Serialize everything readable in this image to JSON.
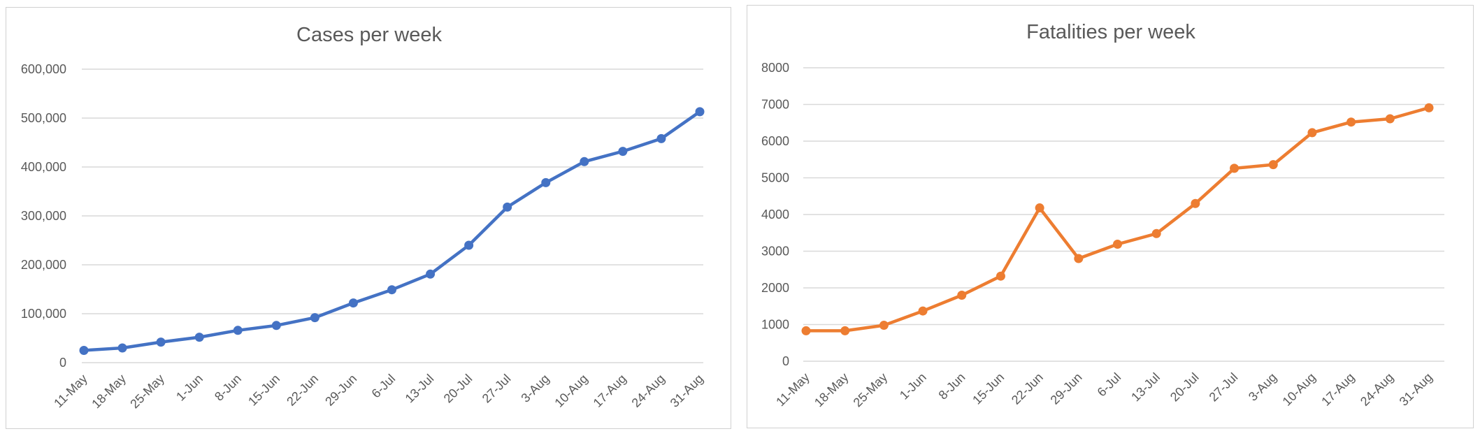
{
  "chart_data": [
    {
      "type": "line",
      "title": "Cases per week",
      "categories": [
        "11-May",
        "18-May",
        "25-May",
        "1-Jun",
        "8-Jun",
        "15-Jun",
        "22-Jun",
        "29-Jun",
        "6-Jul",
        "13-Jul",
        "20-Jul",
        "27-Jul",
        "3-Aug",
        "10-Aug",
        "17-Aug",
        "24-Aug",
        "31-Aug"
      ],
      "series": [
        {
          "values": [
            25000,
            30000,
            42000,
            52000,
            66000,
            76000,
            92000,
            122000,
            149000,
            181000,
            240000,
            318000,
            368000,
            411000,
            432000,
            458000,
            513000
          ]
        }
      ],
      "ylim": [
        0,
        600000
      ],
      "yticks": [
        0,
        100000,
        200000,
        300000,
        400000,
        500000,
        600000
      ],
      "ytick_labels": [
        "0",
        "100,000",
        "200,000",
        "300,000",
        "400,000",
        "500,000",
        "600,000"
      ],
      "grid": true,
      "color": "#4472c4"
    },
    {
      "type": "line",
      "title": "Fatalities per week",
      "categories": [
        "11-May",
        "18-May",
        "25-May",
        "1-Jun",
        "8-Jun",
        "15-Jun",
        "22-Jun",
        "29-Jun",
        "6-Jul",
        "13-Jul",
        "20-Jul",
        "27-Jul",
        "3-Aug",
        "10-Aug",
        "17-Aug",
        "24-Aug",
        "31-Aug"
      ],
      "series": [
        {
          "values": [
            830,
            830,
            980,
            1370,
            1800,
            2320,
            4180,
            2800,
            3190,
            3480,
            4300,
            5260,
            5360,
            6230,
            6520,
            6610,
            6910
          ]
        }
      ],
      "ylim": [
        0,
        8000
      ],
      "yticks": [
        0,
        1000,
        2000,
        3000,
        4000,
        5000,
        6000,
        7000,
        8000
      ],
      "ytick_labels": [
        "0",
        "1000",
        "2000",
        "3000",
        "4000",
        "5000",
        "6000",
        "7000",
        "8000"
      ],
      "grid": true,
      "color": "#ed7d31"
    }
  ]
}
